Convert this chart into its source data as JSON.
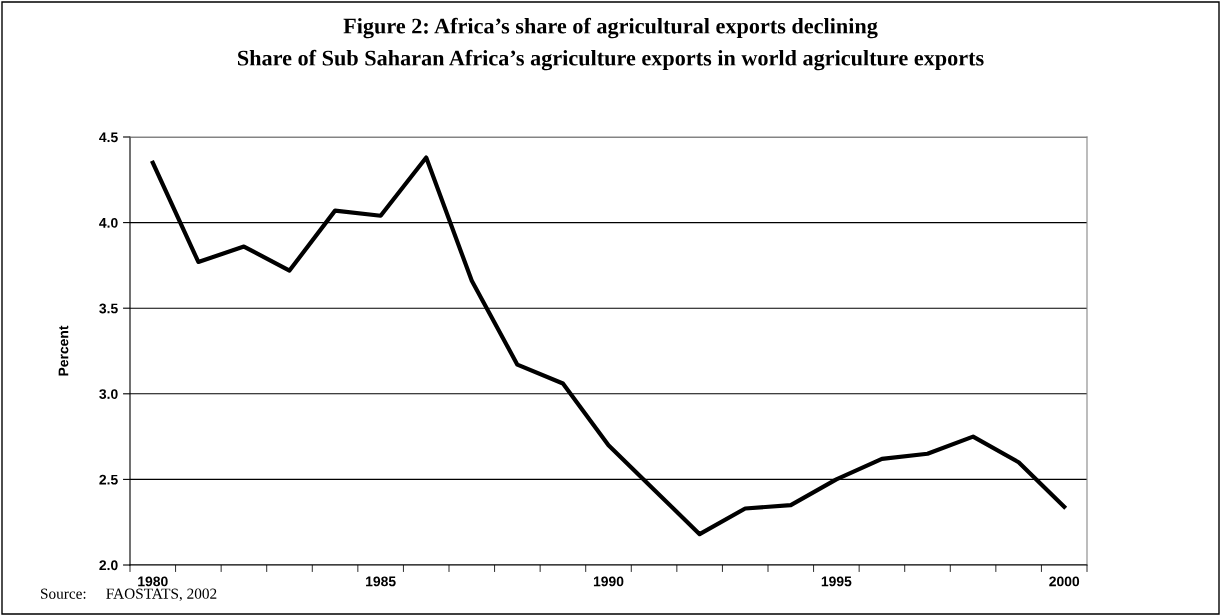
{
  "chart_data": {
    "type": "line",
    "title": "Figure 2: Africa’s share of agricultural exports declining",
    "subtitle": "Share of Sub Saharan Africa’s agriculture exports in world agriculture exports",
    "ylabel": "Percent",
    "categories": [
      "1980",
      null,
      null,
      null,
      null,
      "1985",
      null,
      null,
      null,
      null,
      "1990",
      null,
      null,
      null,
      null,
      "1995",
      null,
      null,
      null,
      null,
      "2000"
    ],
    "series": [
      {
        "color": "#000000",
        "values": [
          4.35,
          3.77,
          3.86,
          3.72,
          4.07,
          4.04,
          4.38,
          3.66,
          3.17,
          3.06,
          2.7,
          2.44,
          2.18,
          2.33,
          2.35,
          2.5,
          2.62,
          2.65,
          2.75,
          2.6,
          2.34
        ]
      }
    ],
    "ylim": [
      2.0,
      4.5
    ],
    "yticks": [
      {
        "value": 2.0,
        "label": "2.0"
      },
      {
        "value": 2.5,
        "label": "2.5"
      },
      {
        "value": 3.0,
        "label": "3.0"
      },
      {
        "value": 3.5,
        "label": "3.5"
      },
      {
        "value": 4.0,
        "label": "4.0"
      },
      {
        "value": 4.5,
        "label": "4.5"
      }
    ],
    "grid": "y",
    "marker": "none",
    "line_style": "solid",
    "annotations": [
      "Source:     FAOSTATS, 2002"
    ]
  }
}
